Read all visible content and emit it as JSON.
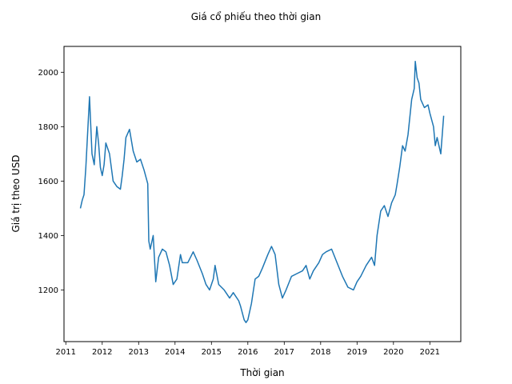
{
  "chart_data": {
    "type": "line",
    "title": "Giá cổ phiếu theo thời gian",
    "xlabel": "Thời gian",
    "ylabel": "Giá trị theo USD",
    "x_ticks": [
      "2011",
      "2012",
      "2013",
      "2014",
      "2015",
      "2016",
      "2017",
      "2018",
      "2019",
      "2020",
      "2021"
    ],
    "y_ticks": [
      1200,
      1400,
      1600,
      1800,
      2000
    ],
    "xlim": [
      2010.95,
      2021.85
    ],
    "ylim": [
      1010,
      2095
    ],
    "grid": false,
    "color": "#1f77b4",
    "series": [
      {
        "name": "",
        "x": [
          2011.4,
          2011.45,
          2011.5,
          2011.55,
          2011.6,
          2011.65,
          2011.68,
          2011.72,
          2011.78,
          2011.85,
          2011.9,
          2011.95,
          2012.0,
          2012.05,
          2012.1,
          2012.2,
          2012.3,
          2012.4,
          2012.5,
          2012.55,
          2012.6,
          2012.65,
          2012.75,
          2012.85,
          2012.95,
          2013.05,
          2013.15,
          2013.25,
          2013.28,
          2013.32,
          2013.4,
          2013.47,
          2013.55,
          2013.65,
          2013.75,
          2013.85,
          2013.95,
          2014.05,
          2014.15,
          2014.2,
          2014.35,
          2014.5,
          2014.6,
          2014.75,
          2014.85,
          2014.95,
          2015.05,
          2015.1,
          2015.2,
          2015.35,
          2015.5,
          2015.6,
          2015.75,
          2015.8,
          2015.9,
          2015.95,
          2016.0,
          2016.1,
          2016.2,
          2016.3,
          2016.4,
          2016.55,
          2016.65,
          2016.75,
          2016.85,
          2016.95,
          2017.05,
          2017.2,
          2017.35,
          2017.5,
          2017.6,
          2017.7,
          2017.8,
          2017.95,
          2018.05,
          2018.15,
          2018.3,
          2018.45,
          2018.6,
          2018.75,
          2018.9,
          2019.0,
          2019.1,
          2019.25,
          2019.4,
          2019.48,
          2019.55,
          2019.65,
          2019.75,
          2019.85,
          2019.95,
          2020.05,
          2020.1,
          2020.17,
          2020.25,
          2020.32,
          2020.4,
          2020.5,
          2020.57,
          2020.6,
          2020.65,
          2020.7,
          2020.75,
          2020.85,
          2020.95,
          2021.0,
          2021.1,
          2021.15,
          2021.2,
          2021.3,
          2021.38
        ],
        "y": [
          1500,
          1530,
          1550,
          1650,
          1780,
          1910,
          1820,
          1700,
          1660,
          1800,
          1740,
          1650,
          1620,
          1660,
          1740,
          1700,
          1600,
          1580,
          1570,
          1620,
          1680,
          1760,
          1790,
          1710,
          1670,
          1680,
          1640,
          1590,
          1380,
          1350,
          1400,
          1230,
          1320,
          1350,
          1340,
          1290,
          1220,
          1240,
          1330,
          1300,
          1300,
          1340,
          1310,
          1260,
          1220,
          1200,
          1240,
          1290,
          1220,
          1200,
          1170,
          1190,
          1160,
          1140,
          1090,
          1080,
          1090,
          1150,
          1240,
          1250,
          1280,
          1330,
          1360,
          1330,
          1220,
          1170,
          1200,
          1250,
          1260,
          1270,
          1290,
          1240,
          1270,
          1300,
          1330,
          1340,
          1350,
          1300,
          1250,
          1210,
          1200,
          1230,
          1250,
          1290,
          1320,
          1290,
          1400,
          1490,
          1510,
          1470,
          1520,
          1550,
          1590,
          1650,
          1730,
          1710,
          1770,
          1900,
          1940,
          2040,
          1980,
          1960,
          1900,
          1870,
          1880,
          1850,
          1800,
          1730,
          1760,
          1700,
          1840
        ]
      }
    ]
  }
}
